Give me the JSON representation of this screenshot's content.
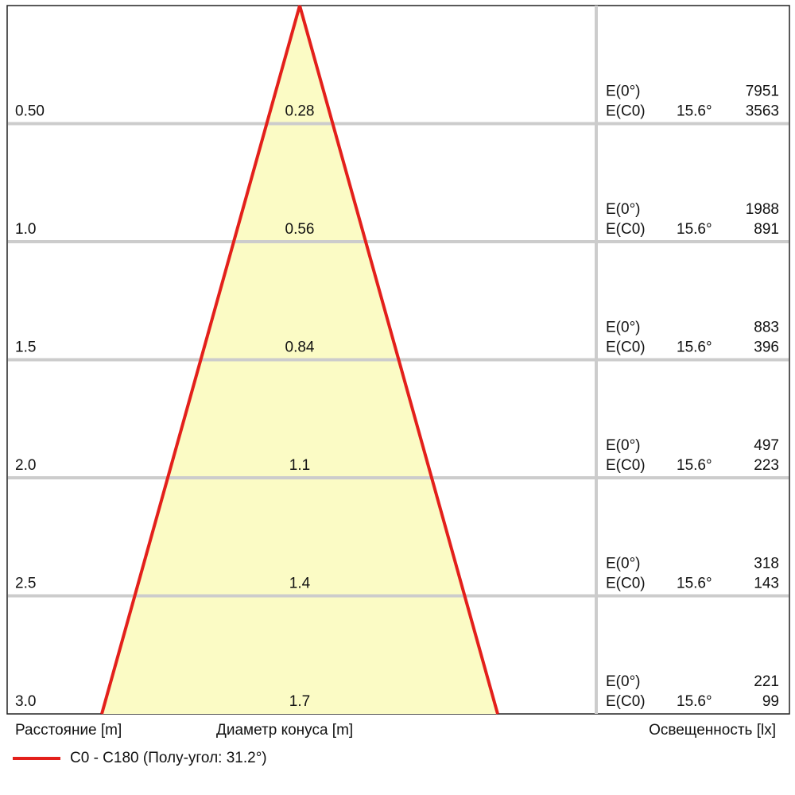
{
  "chart_data": {
    "type": "cone",
    "title": "",
    "distance_label": "Расстояние [m]",
    "diameter_label": "Диаметр конуса [m]",
    "illuminance_label": "Освещенность [lx]",
    "legend": {
      "label": "C0 - C180 (Полу-угол: 31.2°)",
      "color": "#e3201b",
      "placement": "bottom-left"
    },
    "cone_fill_color": "#fbfbc5",
    "grid_color": "#cccccc",
    "rows": [
      {
        "distance": "0.50",
        "diameter": "0.28",
        "e0_label": "E(0°)",
        "e0": "7951",
        "ec0_label": "E(C0)",
        "ec0_angle": "15.6°",
        "ec0": "3563"
      },
      {
        "distance": "1.0",
        "diameter": "0.56",
        "e0_label": "E(0°)",
        "e0": "1988",
        "ec0_label": "E(C0)",
        "ec0_angle": "15.6°",
        "ec0": "891"
      },
      {
        "distance": "1.5",
        "diameter": "0.84",
        "e0_label": "E(0°)",
        "e0": "883",
        "ec0_label": "E(C0)",
        "ec0_angle": "15.6°",
        "ec0": "396"
      },
      {
        "distance": "2.0",
        "diameter": "1.1",
        "e0_label": "E(0°)",
        "e0": "497",
        "ec0_label": "E(C0)",
        "ec0_angle": "15.6°",
        "ec0": "223"
      },
      {
        "distance": "2.5",
        "diameter": "1.4",
        "e0_label": "E(0°)",
        "e0": "318",
        "ec0_label": "E(C0)",
        "ec0_angle": "15.6°",
        "ec0": "143"
      },
      {
        "distance": "3.0",
        "diameter": "1.7",
        "e0_label": "E(0°)",
        "e0": "221",
        "ec0_label": "E(C0)",
        "ec0_angle": "15.6°",
        "ec0": "99"
      }
    ]
  }
}
